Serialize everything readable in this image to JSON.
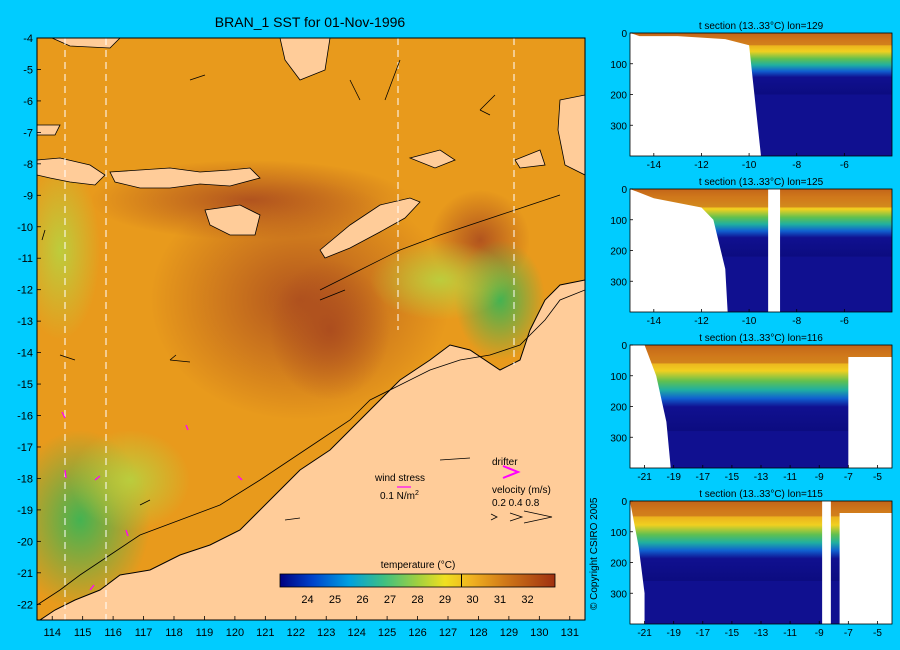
{
  "colors": {
    "background": "#00ccff",
    "land": "#ffcc99",
    "ocean_base": "#e89a1c",
    "warm": "#c0621a",
    "hot": "#a8481e",
    "cool": "#b8d240",
    "green": "#3cb454",
    "deep": "#101090",
    "drifter": "#ff00ff"
  },
  "main_map": {
    "title": "BRAN_1 SST for 01-Nov-1996",
    "lon_ticks": [
      "114",
      "115",
      "116",
      "117",
      "118",
      "119",
      "120",
      "121",
      "122",
      "123",
      "124",
      "125",
      "126",
      "127",
      "128",
      "129",
      "130",
      "131"
    ],
    "lat_ticks": [
      "-4",
      "-5",
      "-6",
      "-7",
      "-8",
      "-9",
      "-10",
      "-11",
      "-12",
      "-13",
      "-14",
      "-15",
      "-16",
      "-17",
      "-18",
      "-19",
      "-20",
      "-21",
      "-22"
    ],
    "section_lons": [
      114.5,
      115.8,
      125.4,
      129.3
    ],
    "legend": {
      "wind_stress_label": "wind stress",
      "wind_stress_value": "0.1 N/m",
      "wind_stress_sup": "2",
      "drifter_label": "drifter",
      "velocity_label": "velocity (m/s)",
      "velocity_values": "0.2 0.4 0.8"
    },
    "colorbar": {
      "title": "temperature (°C)",
      "ticks": [
        "24",
        "25",
        "26",
        "27",
        "28",
        "29",
        "30",
        "31",
        "32"
      ],
      "range": [
        23,
        33
      ],
      "marker_value": 29.6
    }
  },
  "chart_data": [
    {
      "type": "heatmap",
      "title": "BRAN_1 SST for 01-Nov-1996",
      "xlabel": "",
      "ylabel": "",
      "xlim": [
        113.5,
        131.5
      ],
      "ylim": [
        -22.5,
        -4
      ],
      "colorbar_label": "temperature (°C)",
      "colorbar_range": [
        23,
        33
      ]
    },
    {
      "type": "heatmap",
      "title": "t section (13..33°C) lon=129",
      "xlim": [
        -15,
        -4
      ],
      "ylim": [
        400,
        0
      ],
      "x_ticks": [
        "-14",
        "-12",
        "-10",
        "-8",
        "-6"
      ],
      "y_ticks": [
        "0",
        "100",
        "200",
        "300"
      ],
      "surface_depth": 40,
      "thermocline_depth": 150,
      "deep_depth": 200,
      "land_edge": [
        [
          -15,
          0
        ],
        [
          -14.6,
          10
        ],
        [
          -13,
          10
        ],
        [
          -11,
          20
        ],
        [
          -10,
          40
        ],
        [
          -9.5,
          400
        ]
      ]
    },
    {
      "type": "heatmap",
      "title": "t section (13..33°C) lon=125",
      "xlim": [
        -15,
        -4
      ],
      "ylim": [
        400,
        0
      ],
      "x_ticks": [
        "-14",
        "-12",
        "-10",
        "-8",
        "-6"
      ],
      "y_ticks": [
        "0",
        "100",
        "200",
        "300"
      ],
      "surface_depth": 60,
      "thermocline_depth": 150,
      "deep_depth": 220,
      "land_edge": [
        [
          -15,
          0
        ],
        [
          -14,
          30
        ],
        [
          -12,
          60
        ],
        [
          -11.5,
          100
        ],
        [
          -11,
          260
        ],
        [
          -10.9,
          400
        ]
      ],
      "gap": [
        -9.2,
        -8.7
      ]
    },
    {
      "type": "heatmap",
      "title": "t section (13..33°C) lon=116",
      "xlim": [
        -22,
        -4
      ],
      "ylim": [
        400,
        0
      ],
      "x_ticks": [
        "-21",
        "-19",
        "-17",
        "-15",
        "-13",
        "-11",
        "-9",
        "-7",
        "-5"
      ],
      "y_ticks": [
        "0",
        "100",
        "200",
        "300"
      ],
      "surface_depth": 60,
      "thermocline_depth": 200,
      "deep_depth": 280,
      "land_edge": [
        [
          -22,
          0
        ],
        [
          -21,
          0
        ],
        [
          -20.2,
          100
        ],
        [
          -19.5,
          250
        ],
        [
          -19.2,
          400
        ]
      ],
      "east_land": -7
    },
    {
      "type": "heatmap",
      "title": "t section (13..33°C) lon=115",
      "xlim": [
        -22,
        -4
      ],
      "ylim": [
        400,
        0
      ],
      "x_ticks": [
        "-21",
        "-19",
        "-17",
        "-15",
        "-13",
        "-11",
        "-9",
        "-7",
        "-5"
      ],
      "y_ticks": [
        "0",
        "100",
        "200",
        "300"
      ],
      "surface_depth": 50,
      "thermocline_depth": 200,
      "deep_depth": 260,
      "land_edge": [
        [
          -22,
          0
        ],
        [
          -21.4,
          150
        ],
        [
          -21,
          300
        ],
        [
          -21,
          400
        ]
      ],
      "gap": [
        -8.8,
        -8.2
      ],
      "east_land": -7.6
    }
  ],
  "copyright": "© Copyright CSIRO 2005"
}
